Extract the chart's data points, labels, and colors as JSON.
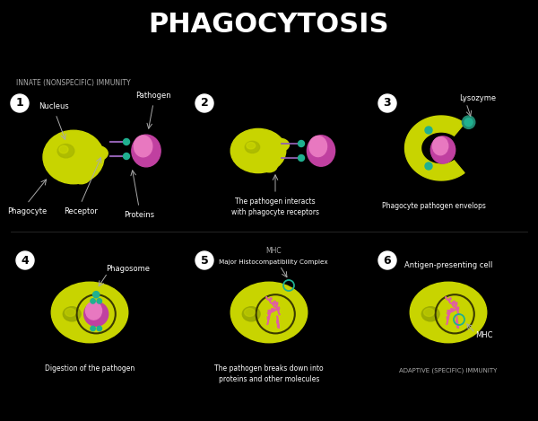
{
  "title": "PHAGOCYTOSIS",
  "bg_color": "#000000",
  "cell_color": "#c8d400",
  "nucleus_color": "#7a8a00",
  "pathogen_color": "#e060a0",
  "teal_color": "#20b090",
  "purple_color": "#9060b0",
  "white_color": "#ffffff",
  "gray_color": "#aaaaaa",
  "innate_label": "INNATE (NONSPECIFIC) IMMUNITY",
  "adaptive_label": "ADAPTIVE (SPECIFIC) IMMUNITY",
  "step_captions": [
    "",
    "The pathogen interacts\nwith phagocyte receptors",
    "Phagocyte pathogen envelops",
    "Digestion of the pathogen",
    "The pathogen breaks down into\nproteins and other molecules",
    "Antigen-presenting cell"
  ]
}
